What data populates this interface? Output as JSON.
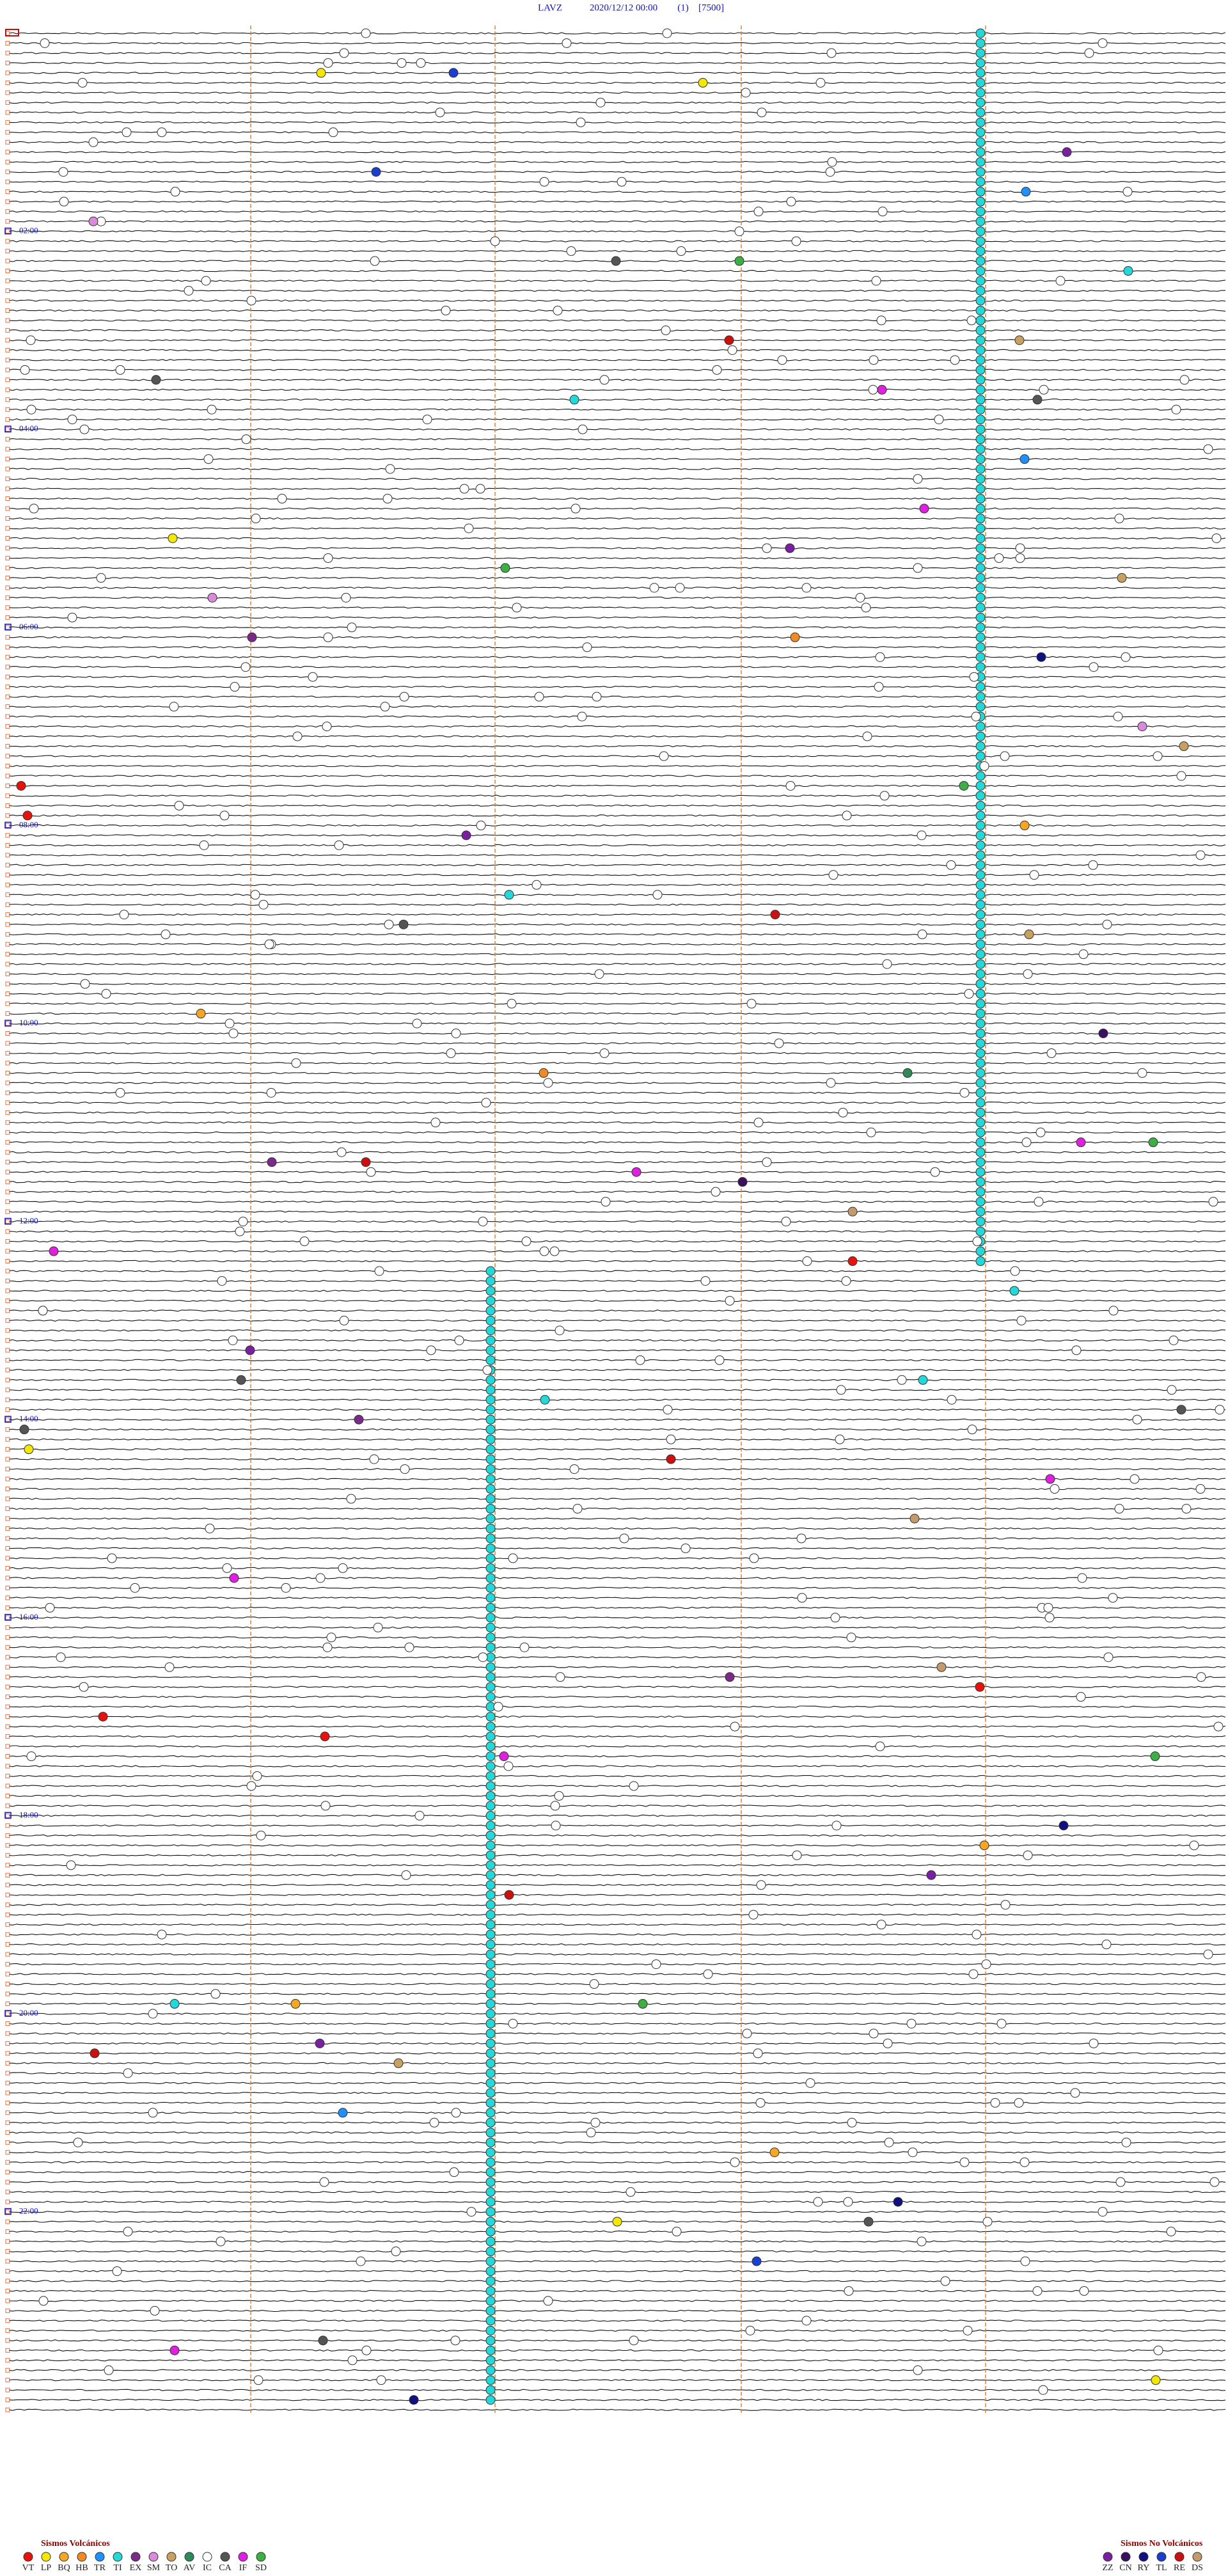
{
  "header": {
    "station": "LAVZ",
    "datetime": "2020/12/12 00:00",
    "channel": "(1)",
    "scale": "[7500]"
  },
  "time_labels": [
    "02:00",
    "04:00",
    "06:00",
    "08:00",
    "10:00",
    "12:00",
    "14:00",
    "16:00",
    "18:00",
    "20:00",
    "22:00"
  ],
  "legend": {
    "volcanic": {
      "title": "Sismos Volcánicos",
      "items": [
        {
          "code": "VT",
          "color": "#e8120c"
        },
        {
          "code": "LP",
          "color": "#f5e800"
        },
        {
          "code": "BQ",
          "color": "#f5a623"
        },
        {
          "code": "HB",
          "color": "#f08a24"
        },
        {
          "code": "TR",
          "color": "#1e90ff"
        },
        {
          "code": "TI",
          "color": "#22d8d8"
        },
        {
          "code": "EX",
          "color": "#7b2a8c"
        },
        {
          "code": "SM",
          "color": "#d98ad9"
        },
        {
          "code": "TO",
          "color": "#c8a060"
        },
        {
          "code": "AV",
          "color": "#2e8b57"
        },
        {
          "code": "IC",
          "color": "#ffffff"
        },
        {
          "code": "CA",
          "color": "#555555"
        },
        {
          "code": "IF",
          "color": "#e020e0"
        },
        {
          "code": "SD",
          "color": "#3cb043"
        }
      ]
    },
    "non_volcanic": {
      "title": "Sismos No Volcánicos",
      "items": [
        {
          "code": "ZZ",
          "color": "#7a1fa2"
        },
        {
          "code": "CN",
          "color": "#3a1060"
        },
        {
          "code": "RY",
          "color": "#101080"
        },
        {
          "code": "TL",
          "color": "#1a3fd0"
        },
        {
          "code": "RE",
          "color": "#cc1010"
        },
        {
          "code": "DS",
          "color": "#c49a6c"
        }
      ]
    }
  }
}
